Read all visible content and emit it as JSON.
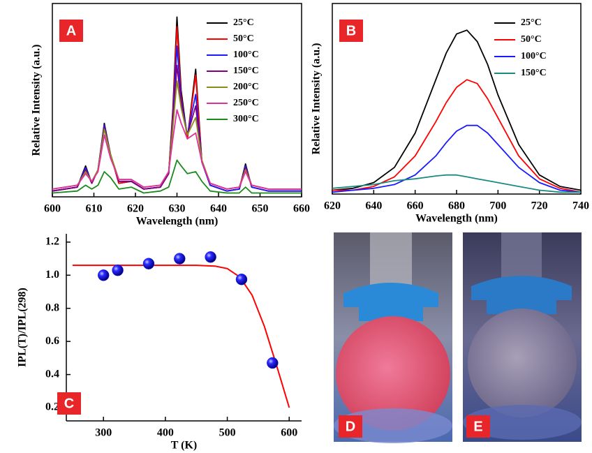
{
  "chart_data": [
    {
      "type": "line",
      "label": "A",
      "xlabel": "Wavelength (nm)",
      "ylabel": "Relative Intensity (a.u.)",
      "x": [
        600,
        606,
        608,
        609.5,
        611,
        612.5,
        614,
        616,
        619,
        622,
        626,
        628,
        629,
        630,
        631,
        632.5,
        634.5,
        636,
        638,
        642,
        645,
        646.5,
        648,
        652,
        660
      ],
      "xlim": [
        600,
        660
      ],
      "xticks": [
        600,
        610,
        620,
        630,
        640,
        650,
        660
      ],
      "ylim": [
        0,
        1
      ],
      "series": [
        {
          "name": "25°C",
          "color": "#000000",
          "values": [
            0.03,
            0.05,
            0.16,
            0.07,
            0.14,
            0.38,
            0.22,
            0.07,
            0.08,
            0.04,
            0.05,
            0.12,
            0.45,
            0.93,
            0.55,
            0.3,
            0.66,
            0.18,
            0.06,
            0.03,
            0.04,
            0.17,
            0.05,
            0.03,
            0.03
          ]
        },
        {
          "name": "50°C",
          "color": "#ff0000",
          "values": [
            0.03,
            0.05,
            0.15,
            0.07,
            0.14,
            0.37,
            0.22,
            0.07,
            0.08,
            0.04,
            0.05,
            0.12,
            0.43,
            0.88,
            0.52,
            0.3,
            0.63,
            0.18,
            0.06,
            0.03,
            0.04,
            0.16,
            0.05,
            0.03,
            0.03
          ]
        },
        {
          "name": "100°C",
          "color": "#1a1aff",
          "values": [
            0.03,
            0.05,
            0.15,
            0.07,
            0.14,
            0.37,
            0.22,
            0.08,
            0.08,
            0.04,
            0.05,
            0.12,
            0.4,
            0.78,
            0.5,
            0.32,
            0.53,
            0.18,
            0.06,
            0.03,
            0.04,
            0.16,
            0.05,
            0.03,
            0.03
          ]
        },
        {
          "name": "150°C",
          "color": "#800080",
          "values": [
            0.03,
            0.05,
            0.14,
            0.07,
            0.14,
            0.36,
            0.22,
            0.08,
            0.08,
            0.04,
            0.05,
            0.12,
            0.38,
            0.68,
            0.48,
            0.32,
            0.47,
            0.18,
            0.07,
            0.04,
            0.05,
            0.15,
            0.06,
            0.04,
            0.04
          ]
        },
        {
          "name": "200°C",
          "color": "#8b8b1a",
          "values": [
            0.04,
            0.06,
            0.13,
            0.08,
            0.14,
            0.35,
            0.22,
            0.09,
            0.09,
            0.05,
            0.06,
            0.13,
            0.36,
            0.6,
            0.46,
            0.32,
            0.41,
            0.19,
            0.07,
            0.04,
            0.05,
            0.14,
            0.06,
            0.04,
            0.04
          ]
        },
        {
          "name": "250°C",
          "color": "#e0309a",
          "values": [
            0.04,
            0.06,
            0.12,
            0.08,
            0.13,
            0.32,
            0.2,
            0.09,
            0.09,
            0.05,
            0.06,
            0.13,
            0.3,
            0.45,
            0.38,
            0.3,
            0.33,
            0.18,
            0.07,
            0.04,
            0.05,
            0.13,
            0.06,
            0.04,
            0.04
          ]
        },
        {
          "name": "300°C",
          "color": "#1a8a1a",
          "values": [
            0.02,
            0.03,
            0.06,
            0.04,
            0.06,
            0.13,
            0.1,
            0.04,
            0.05,
            0.02,
            0.03,
            0.05,
            0.12,
            0.19,
            0.16,
            0.12,
            0.13,
            0.08,
            0.03,
            0.02,
            0.02,
            0.05,
            0.02,
            0.02,
            0.02
          ]
        }
      ]
    },
    {
      "type": "line",
      "label": "B",
      "xlabel": "Wavelength (nm)",
      "ylabel": "Relative Intensity (a.u.)",
      "x": [
        620,
        630,
        640,
        650,
        660,
        670,
        675,
        680,
        685,
        690,
        695,
        700,
        710,
        720,
        730,
        740
      ],
      "xlim": [
        620,
        740
      ],
      "xticks": [
        620,
        640,
        660,
        680,
        700,
        720,
        740
      ],
      "ylim": [
        0,
        1
      ],
      "series": [
        {
          "name": "25°C",
          "color": "#000000",
          "values": [
            0.02,
            0.03,
            0.06,
            0.14,
            0.32,
            0.6,
            0.74,
            0.84,
            0.86,
            0.8,
            0.68,
            0.52,
            0.26,
            0.1,
            0.04,
            0.02
          ]
        },
        {
          "name": "50°C",
          "color": "#ff0000",
          "values": [
            0.02,
            0.02,
            0.04,
            0.09,
            0.2,
            0.38,
            0.48,
            0.56,
            0.6,
            0.58,
            0.5,
            0.4,
            0.2,
            0.08,
            0.03,
            0.01
          ]
        },
        {
          "name": "100°C",
          "color": "#1a1aff",
          "values": [
            0.01,
            0.02,
            0.03,
            0.05,
            0.1,
            0.2,
            0.27,
            0.33,
            0.36,
            0.36,
            0.32,
            0.26,
            0.14,
            0.06,
            0.02,
            0.01
          ]
        },
        {
          "name": "150°C",
          "color": "#1a8a80",
          "values": [
            0.03,
            0.04,
            0.05,
            0.07,
            0.08,
            0.095,
            0.1,
            0.1,
            0.09,
            0.08,
            0.07,
            0.06,
            0.04,
            0.02,
            0.01,
            0.01
          ]
        }
      ]
    },
    {
      "type": "scatter",
      "label": "C",
      "xlabel": "T (K)",
      "ylabel": "IPL(T)/IPL(298)",
      "x": [
        300,
        323,
        373,
        423,
        473,
        523,
        573
      ],
      "values": [
        1.0,
        1.03,
        1.07,
        1.1,
        1.11,
        0.975,
        0.47
      ],
      "color": "#1a1aff",
      "fit": {
        "color": "#ff0000",
        "x": [
          250,
          300,
          350,
          400,
          450,
          480,
          500,
          520,
          540,
          560,
          580,
          600
        ],
        "values": [
          1.06,
          1.06,
          1.06,
          1.06,
          1.06,
          1.055,
          1.04,
          0.99,
          0.88,
          0.69,
          0.45,
          0.2
        ]
      },
      "xlim": [
        240,
        620
      ],
      "xticks": [
        300,
        400,
        500,
        600
      ],
      "ylim": [
        0.12,
        1.25
      ],
      "yticks": [
        0.2,
        0.4,
        0.6,
        0.8,
        {
          "value": 1,
          "label": "1.0"
        },
        1.2
      ]
    }
  ],
  "photos": [
    {
      "label": "D"
    },
    {
      "label": "E"
    }
  ]
}
